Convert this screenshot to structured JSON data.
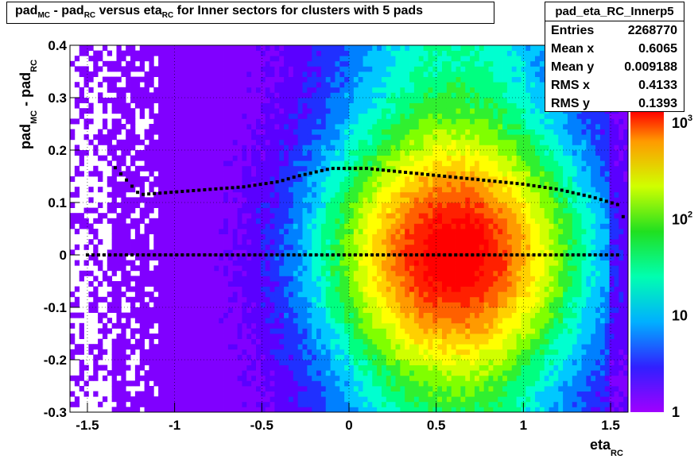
{
  "title": {
    "parts": [
      {
        "text": "pad",
        "sub": "MC"
      },
      {
        "text": " - pad",
        "sub": "RC"
      },
      {
        "text": " versus eta",
        "sub": "RC"
      },
      {
        "text": " for Inner sectors for clusters with 5 pads",
        "sub": ""
      }
    ]
  },
  "stats": {
    "name": "pad_eta_RC_Innerp5",
    "rows": [
      {
        "label": "Entries",
        "value": "2268770"
      },
      {
        "label": "Mean x",
        "value": "0.6065"
      },
      {
        "label": "Mean y",
        "value": "0.009188"
      },
      {
        "label": "RMS x",
        "value": "0.4133"
      },
      {
        "label": "RMS y",
        "value": "0.1393"
      }
    ]
  },
  "chart_data": {
    "type": "heatmap",
    "title": "pad_MC - pad_RC versus eta_RC for Inner sectors for clusters with 5 pads",
    "xlabel": "eta_RC",
    "ylabel": "pad_MC - pad_RC",
    "xlim": [
      -1.6,
      1.6
    ],
    "ylim": [
      -0.3,
      0.4
    ],
    "x_ticks": [
      "-1.5",
      "-1",
      "-0.5",
      "0",
      "0.5",
      "1",
      "1.5"
    ],
    "y_ticks": [
      "-0.3",
      "-0.2",
      "-0.1",
      "0",
      "0.1",
      "0.2",
      "0.3",
      "0.4"
    ],
    "colorbar": {
      "scale": "log",
      "range": [
        1,
        1000
      ],
      "ticks": [
        "1",
        "10",
        "10^2",
        "10^3"
      ]
    },
    "grid": true,
    "density_peak": {
      "x": 0.6,
      "y": 0.0
    },
    "profile_mean": [
      [
        -1.5,
        0.0
      ],
      [
        -1.2,
        0.0
      ],
      [
        -0.9,
        0.0
      ],
      [
        -0.6,
        0.0
      ],
      [
        -0.3,
        0.0
      ],
      [
        0.0,
        0.0
      ],
      [
        0.5,
        0.0
      ],
      [
        1.0,
        0.0
      ],
      [
        1.5,
        0.0
      ],
      [
        1.57,
        0.0
      ]
    ],
    "profile_rms": [
      [
        -1.35,
        0.17
      ],
      [
        -1.2,
        0.115
      ],
      [
        -1.0,
        0.12
      ],
      [
        -0.8,
        0.125
      ],
      [
        -0.6,
        0.13
      ],
      [
        -0.4,
        0.14
      ],
      [
        -0.3,
        0.15
      ],
      [
        -0.1,
        0.165
      ],
      [
        0.1,
        0.165
      ],
      [
        0.4,
        0.155
      ],
      [
        0.7,
        0.145
      ],
      [
        1.0,
        0.135
      ],
      [
        1.2,
        0.125
      ],
      [
        1.4,
        0.11
      ],
      [
        1.55,
        0.095
      ],
      [
        1.58,
        0.065
      ]
    ]
  }
}
